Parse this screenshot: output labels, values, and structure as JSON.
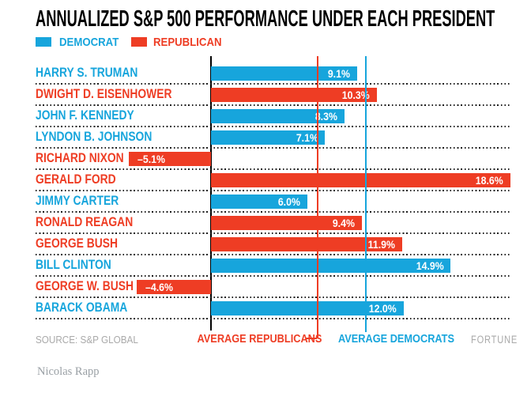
{
  "title": "ANNUALIZED S&P 500 PERFORMANCE UNDER EACH PRESIDENT",
  "legend": [
    {
      "label": "DEMOCRAT",
      "color": "#17A5DC"
    },
    {
      "label": "REPUBLICAN",
      "color": "#EE3D24"
    }
  ],
  "chart_data": {
    "type": "bar",
    "orientation": "horizontal",
    "title": "ANNUALIZED S&P 500 PERFORMANCE UNDER EACH PRESIDENT",
    "unit": "%",
    "categories": [
      "HARRY S. TRUMAN",
      "DWIGHT D. EISENHOWER",
      "JOHN F. KENNEDY",
      "LYNDON B. JOHNSON",
      "RICHARD NIXON",
      "GERALD FORD",
      "JIMMY CARTER",
      "RONALD REAGAN",
      "GEORGE BUSH",
      "BILL CLINTON",
      "GEORGE W. BUSH",
      "BARACK OBAMA"
    ],
    "values": [
      9.1,
      10.3,
      8.3,
      7.1,
      -5.1,
      18.6,
      6.0,
      9.4,
      11.9,
      14.9,
      -4.6,
      12.0
    ],
    "labels": [
      "9.1%",
      "10.3%",
      "8.3%",
      "7.1%",
      "–5.1%",
      "18.6%",
      "6.0%",
      "9.4%",
      "11.9%",
      "14.9%",
      "–4.6%",
      "12.0%"
    ],
    "parties": [
      "D",
      "R",
      "D",
      "D",
      "R",
      "R",
      "D",
      "R",
      "R",
      "D",
      "R",
      "D"
    ],
    "colors": {
      "D": "#17A5DC",
      "R": "#EE3D24"
    },
    "baseline": 0,
    "xlim": [
      -6.2,
      19.0
    ],
    "gridlines": false,
    "row_separator": "dotted",
    "reference_lines": [
      {
        "label": "AVERAGE REPUBLICANS",
        "party": "R",
        "value": 6.6
      },
      {
        "label": "AVERAGE DEMOCRATS",
        "party": "D",
        "value": 9.6
      }
    ],
    "legend_position": "top-left"
  },
  "footer": {
    "source": "SOURCE: S&P GLOBAL",
    "brand": "FORTUNE"
  },
  "credit": "Nicolas Rapp"
}
